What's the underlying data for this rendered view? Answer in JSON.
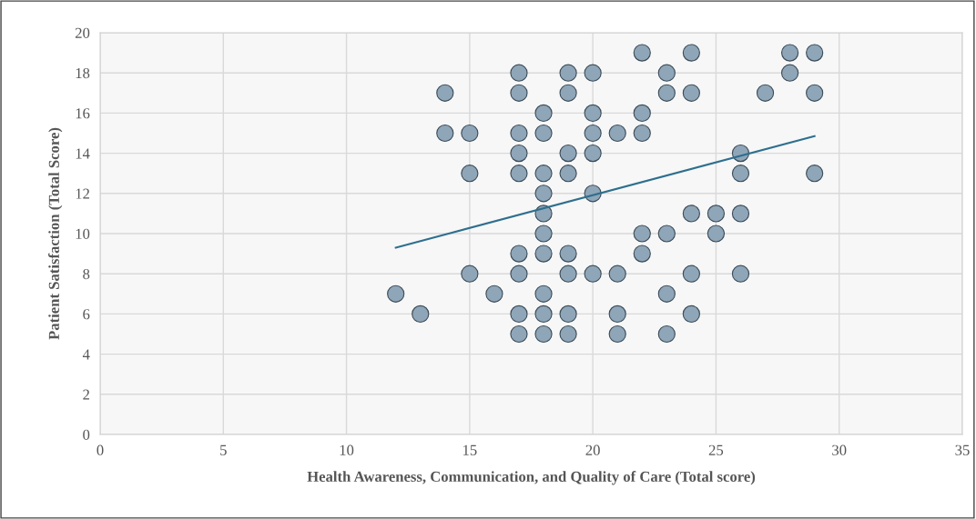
{
  "chart_data": {
    "type": "scatter",
    "xlabel": "Health Awareness, Communication, and Quality of Care (Total score)",
    "ylabel": "Patient Satisfaction (Total Score)",
    "xlim": [
      0,
      35
    ],
    "ylim": [
      0,
      20
    ],
    "xticks": [
      0,
      5,
      10,
      15,
      20,
      25,
      30,
      35
    ],
    "yticks": [
      0,
      2,
      4,
      6,
      8,
      10,
      12,
      14,
      16,
      18,
      20
    ],
    "grid": true,
    "series": [
      {
        "color": "#8fa6b8",
        "marker": "circle",
        "x": [
          12,
          13,
          14,
          14,
          15,
          15,
          15,
          16,
          17,
          17,
          17,
          17,
          17,
          17,
          17,
          17,
          17,
          18,
          18,
          18,
          18,
          18,
          18,
          18,
          18,
          18,
          18,
          19,
          19,
          19,
          19,
          19,
          19,
          19,
          19,
          20,
          20,
          20,
          20,
          20,
          20,
          21,
          21,
          21,
          21,
          22,
          22,
          22,
          22,
          22,
          23,
          23,
          23,
          23,
          23,
          24,
          24,
          24,
          24,
          24,
          25,
          25,
          26,
          26,
          26,
          26,
          27,
          28,
          28,
          29,
          29,
          29
        ],
        "values": [
          7,
          6,
          17,
          15,
          15,
          13,
          8,
          7,
          18,
          17,
          15,
          14,
          13,
          9,
          8,
          6,
          5,
          16,
          15,
          13,
          12,
          11,
          10,
          9,
          7,
          6,
          5,
          18,
          17,
          14,
          13,
          9,
          8,
          6,
          5,
          18,
          16,
          15,
          14,
          12,
          8,
          15,
          8,
          6,
          5,
          19,
          16,
          15,
          10,
          9,
          18,
          17,
          10,
          7,
          5,
          19,
          17,
          11,
          8,
          6,
          11,
          10,
          14,
          13,
          11,
          8,
          17,
          19,
          18,
          19,
          17,
          13
        ]
      },
      {
        "type": "line",
        "color": "#2e6f8e",
        "marker": "none",
        "line_style": "solid",
        "x": [
          12,
          29
        ],
        "values": [
          9.3,
          14.85
        ]
      }
    ]
  }
}
